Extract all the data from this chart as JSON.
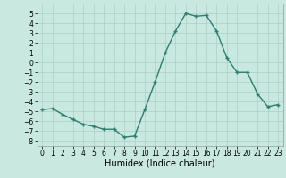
{
  "x": [
    0,
    1,
    2,
    3,
    4,
    5,
    6,
    7,
    8,
    9,
    10,
    11,
    12,
    13,
    14,
    15,
    16,
    17,
    18,
    19,
    20,
    21,
    22,
    23
  ],
  "y": [
    -4.8,
    -4.7,
    -5.3,
    -5.8,
    -6.3,
    -6.5,
    -6.8,
    -6.8,
    -7.6,
    -7.5,
    -4.8,
    -2.0,
    1.0,
    3.2,
    5.0,
    4.7,
    4.8,
    3.2,
    0.5,
    -1.0,
    -1.0,
    -3.2,
    -4.5,
    -4.3
  ],
  "line_color": "#2e7d6e",
  "marker": "+",
  "markersize": 3.5,
  "linewidth": 1.0,
  "background_color": "#c8e8e0",
  "grid_color": "#aacfc8",
  "xlabel": "Humidex (Indice chaleur)",
  "ylim": [
    -8.5,
    6.0
  ],
  "xlim": [
    -0.5,
    23.5
  ],
  "yticks": [
    -8,
    -7,
    -6,
    -5,
    -4,
    -3,
    -2,
    -1,
    0,
    1,
    2,
    3,
    4,
    5
  ],
  "xticks": [
    0,
    1,
    2,
    3,
    4,
    5,
    6,
    7,
    8,
    9,
    10,
    11,
    12,
    13,
    14,
    15,
    16,
    17,
    18,
    19,
    20,
    21,
    22,
    23
  ],
  "tick_fontsize": 5.5,
  "xlabel_fontsize": 7.0
}
